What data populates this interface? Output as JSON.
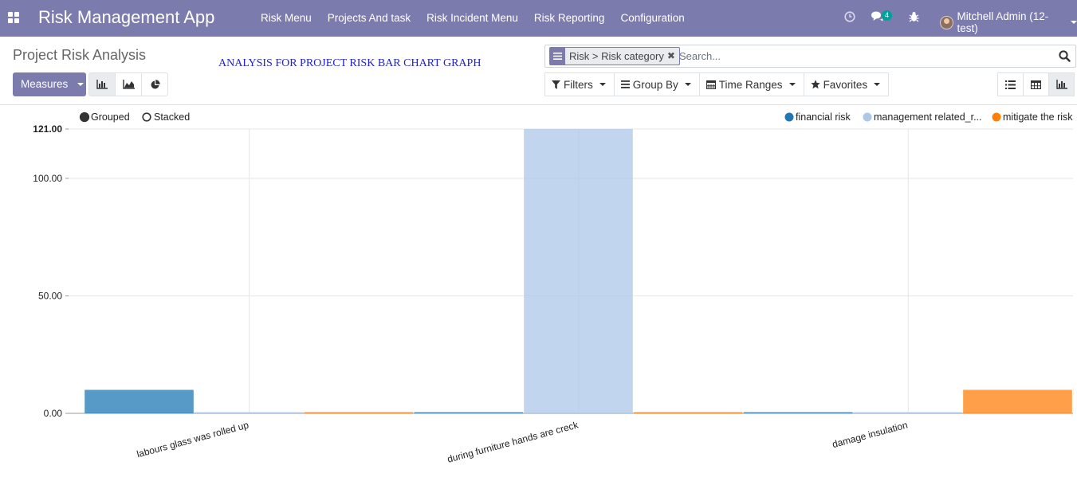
{
  "navbar": {
    "brand": "Risk Management App",
    "menu": [
      "Risk Menu",
      "Projects And task",
      "Risk Incident Menu",
      "Risk Reporting",
      "Configuration"
    ],
    "messages_count": "4",
    "user": "Mitchell Admin (12-test)"
  },
  "control_panel": {
    "title": "Project Risk Analysis",
    "annotation": "ANALYSIS FOR PROJECT RISK BAR CHART GRAPH",
    "measures_label": "Measures",
    "facet_label": "Risk > Risk category",
    "search_placeholder": "Search...",
    "filters_label": "Filters",
    "group_by_label": "Group By",
    "time_ranges_label": "Time Ranges",
    "favorites_label": "Favorites"
  },
  "chart_data": {
    "type": "bar",
    "mode_labels": [
      "Grouped",
      "Stacked"
    ],
    "active_mode": "Grouped",
    "categories": [
      "labours glass was rolled up",
      "during furniture hands are creck",
      "damage insulation"
    ],
    "series": [
      {
        "name": "financial risk",
        "color": "#1f77b4",
        "values": [
          10,
          0,
          0
        ]
      },
      {
        "name": "management related_r...",
        "color": "#aec7e8",
        "values": [
          0,
          121,
          0
        ]
      },
      {
        "name": "mitigate the risk",
        "color": "#ff7f0e",
        "values": [
          0,
          0,
          10
        ]
      }
    ],
    "ylim": [
      0,
      121
    ],
    "y_ticks": [
      "121.00",
      "100.00",
      "50.00",
      "0.00"
    ],
    "y_tick_values": [
      121,
      100,
      50,
      0
    ],
    "legend_position": "top-right",
    "grid": true
  }
}
